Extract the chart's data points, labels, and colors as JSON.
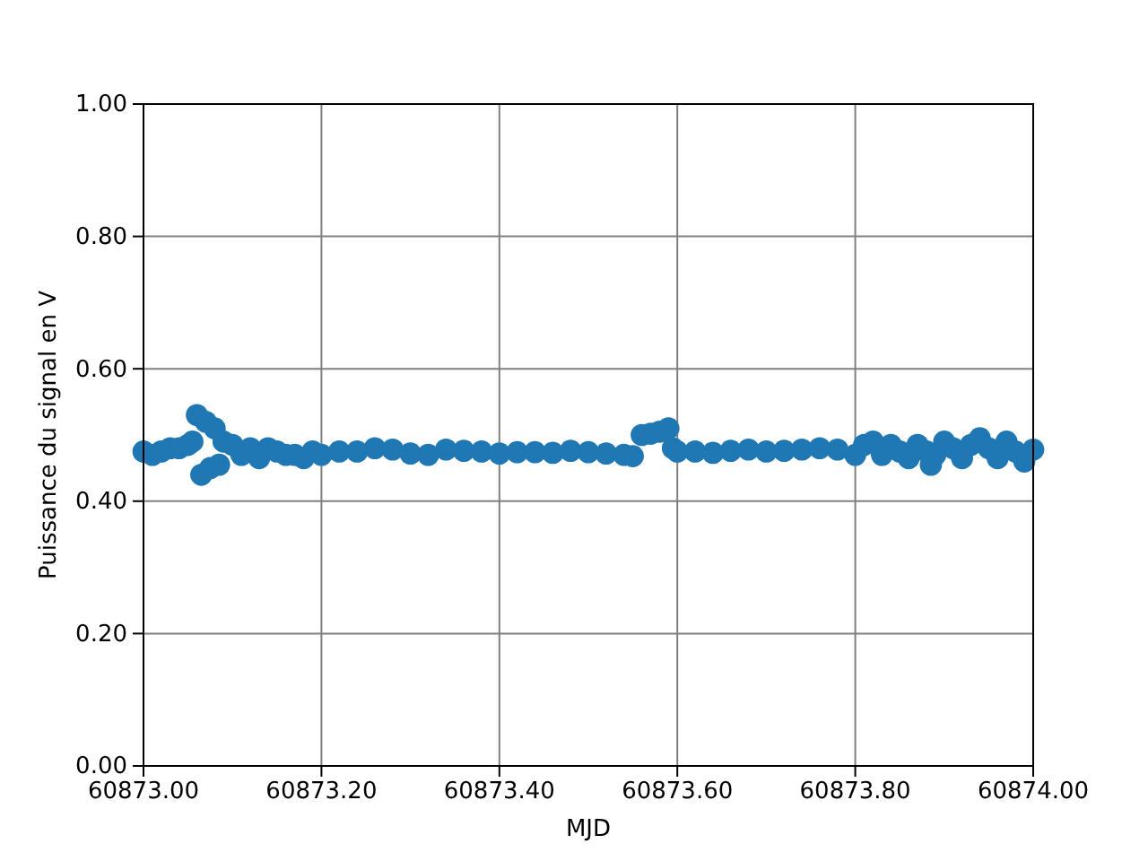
{
  "chart_data": {
    "type": "scatter",
    "xlabel": "MJD",
    "ylabel": "Puissance du signal en V",
    "x": [
      60873.0,
      60873.01,
      60873.02,
      60873.03,
      60873.04,
      60873.05,
      60873.055,
      60873.06,
      60873.065,
      60873.07,
      60873.075,
      60873.08,
      60873.085,
      60873.09,
      60873.1,
      60873.11,
      60873.12,
      60873.13,
      60873.14,
      60873.15,
      60873.16,
      60873.17,
      60873.18,
      60873.19,
      60873.2,
      60873.22,
      60873.24,
      60873.26,
      60873.28,
      60873.3,
      60873.32,
      60873.34,
      60873.36,
      60873.38,
      60873.4,
      60873.42,
      60873.44,
      60873.46,
      60873.48,
      60873.5,
      60873.52,
      60873.54,
      60873.55,
      60873.56,
      60873.57,
      60873.58,
      60873.59,
      60873.595,
      60873.6,
      60873.62,
      60873.64,
      60873.66,
      60873.68,
      60873.7,
      60873.72,
      60873.74,
      60873.76,
      60873.78,
      60873.8,
      60873.81,
      60873.82,
      60873.83,
      60873.84,
      60873.85,
      60873.86,
      60873.87,
      60873.88,
      60873.885,
      60873.89,
      60873.9,
      60873.91,
      60873.92,
      60873.93,
      60873.94,
      60873.95,
      60873.96,
      60873.97,
      60873.98,
      60873.99,
      60874.0
    ],
    "values": [
      0.475,
      0.47,
      0.475,
      0.48,
      0.48,
      0.485,
      0.49,
      0.53,
      0.44,
      0.52,
      0.45,
      0.51,
      0.455,
      0.49,
      0.485,
      0.47,
      0.48,
      0.465,
      0.48,
      0.475,
      0.47,
      0.47,
      0.465,
      0.475,
      0.47,
      0.475,
      0.475,
      0.48,
      0.478,
      0.472,
      0.47,
      0.478,
      0.476,
      0.475,
      0.472,
      0.474,
      0.474,
      0.473,
      0.476,
      0.474,
      0.472,
      0.47,
      0.468,
      0.5,
      0.502,
      0.505,
      0.51,
      0.48,
      0.475,
      0.475,
      0.473,
      0.476,
      0.478,
      0.475,
      0.476,
      0.478,
      0.48,
      0.478,
      0.47,
      0.485,
      0.49,
      0.47,
      0.485,
      0.475,
      0.465,
      0.485,
      0.475,
      0.455,
      0.47,
      0.49,
      0.48,
      0.465,
      0.485,
      0.495,
      0.48,
      0.465,
      0.49,
      0.475,
      0.46,
      0.478
    ],
    "color": "#1f77b4",
    "marker": "circle",
    "xlim": [
      60873,
      60874
    ],
    "xticks": [
      {
        "value": 60873,
        "label": "60873.00"
      },
      {
        "value": 60873.2,
        "label": "60873.20"
      },
      {
        "value": 60873.4,
        "label": "60873.40"
      },
      {
        "value": 60873.6,
        "label": "60873.60"
      },
      {
        "value": 60873.8,
        "label": "60873.80"
      },
      {
        "value": 60874,
        "label": "60874.00"
      }
    ],
    "ylim": [
      0,
      1
    ],
    "yticks": [
      {
        "value": 0,
        "label": "0.00"
      },
      {
        "value": 0.2,
        "label": "0.20"
      },
      {
        "value": 0.4,
        "label": "0.40"
      },
      {
        "value": 0.6,
        "label": "0.60"
      },
      {
        "value": 0.8,
        "label": "0.80"
      },
      {
        "value": 1,
        "label": "1.00"
      }
    ],
    "grid": true
  }
}
